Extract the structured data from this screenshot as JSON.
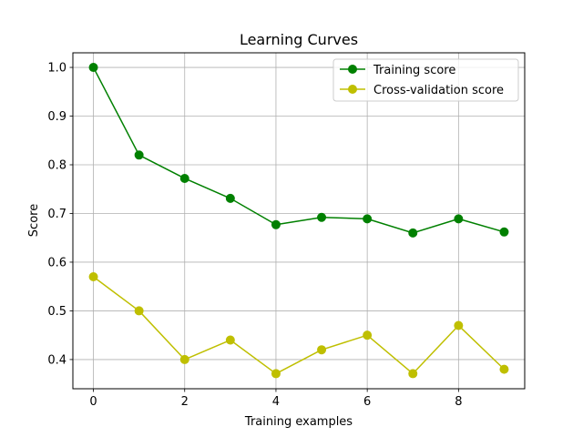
{
  "chart_data": {
    "type": "line",
    "title": "Learning Curves",
    "xlabel": "Training examples",
    "ylabel": "Score",
    "xlim": [
      -0.45,
      9.45
    ],
    "ylim": [
      0.34,
      1.03
    ],
    "grid": true,
    "legend_position": "top-right",
    "x": [
      0,
      1,
      2,
      3,
      4,
      5,
      6,
      7,
      8,
      9
    ],
    "xticks": [
      0,
      2,
      4,
      6,
      8
    ],
    "yticks": [
      0.4,
      0.5,
      0.6,
      0.7,
      0.8,
      0.9,
      1.0
    ],
    "xtick_labels": [
      "0",
      "2",
      "4",
      "6",
      "8"
    ],
    "ytick_labels": [
      "0.4",
      "0.5",
      "0.6",
      "0.7",
      "0.8",
      "0.9",
      "1.0"
    ],
    "series": [
      {
        "name": "Training score",
        "color": "#008000",
        "values": [
          1.0,
          0.82,
          0.772,
          0.731,
          0.677,
          0.692,
          0.689,
          0.66,
          0.689,
          0.662
        ]
      },
      {
        "name": "Cross-validation score",
        "color": "#bfbf00",
        "values": [
          0.57,
          0.5,
          0.4,
          0.44,
          0.371,
          0.42,
          0.45,
          0.371,
          0.47,
          0.38
        ]
      }
    ]
  }
}
